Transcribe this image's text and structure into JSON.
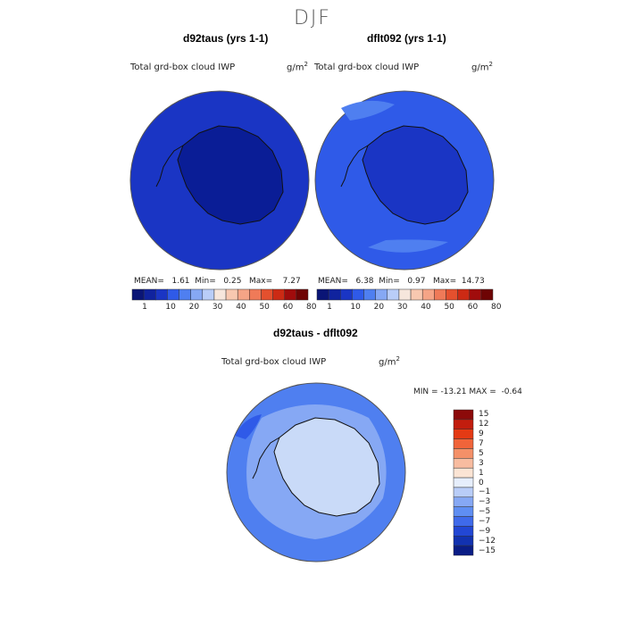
{
  "season_title": "DJF",
  "panels": [
    {
      "title": "d92taus (yrs 1-1)",
      "variable": "Total grd-box cloud IWP",
      "units": "g/m",
      "units_exp": "2",
      "stats": {
        "mean_label": "MEAN=",
        "mean": "1.61",
        "min_label": "Min=",
        "min": "0.25",
        "max_label": "Max=",
        "max": "7.27"
      },
      "fill_colors": {
        "ocean": "#1a35c4",
        "continent": "#0a1d96"
      }
    },
    {
      "title": "dflt092 (yrs 1-1)",
      "variable": "Total grd-box cloud IWP",
      "units": "g/m",
      "units_exp": "2",
      "stats": {
        "mean_label": "MEAN=",
        "mean": "6.38",
        "min_label": "Min=",
        "min": "0.97",
        "max_label": "Max=",
        "max": "14.73"
      },
      "fill_colors": {
        "ocean": "#2f5ae8",
        "continent": "#1a35c4"
      }
    },
    {
      "title": "d92taus - dflt092",
      "variable": "Total grd-box cloud IWP",
      "units": "g/m",
      "units_exp": "2",
      "stats": {
        "min_label": "MIN =",
        "min": "-13.21",
        "max_label": "MAX =",
        "max": "-0.64"
      },
      "fill_colors": {
        "ocean": "#4f7ff0",
        "continent": "#c9daf8"
      }
    }
  ],
  "horizontal_colorbar": {
    "colors": [
      "#0a1576",
      "#10239e",
      "#1a35c4",
      "#2f5ae8",
      "#4f7ff0",
      "#86a8f4",
      "#b9cdf8",
      "#f6e6dc",
      "#f8c8b0",
      "#f5a486",
      "#ef7a58",
      "#e4502e",
      "#cc2a14",
      "#a00c0c",
      "#6e0404"
    ],
    "labels": [
      "1",
      "10",
      "20",
      "30",
      "40",
      "50",
      "60",
      "80"
    ]
  },
  "vertical_colorbar": {
    "colors": [
      "#8c0a0a",
      "#c21d0e",
      "#e43a14",
      "#f0643a",
      "#f49068",
      "#f8bca0",
      "#fbe4d4",
      "#e6eefc",
      "#b9cdf8",
      "#86a8f4",
      "#5f8ef2",
      "#3f6aea",
      "#2247d4",
      "#1232b0",
      "#0a1d86"
    ],
    "labels": [
      "15",
      "12",
      "9",
      "7",
      "5",
      "3",
      "1",
      "0",
      "−1",
      "−3",
      "−5",
      "−7",
      "−9",
      "−12",
      "−15"
    ]
  }
}
